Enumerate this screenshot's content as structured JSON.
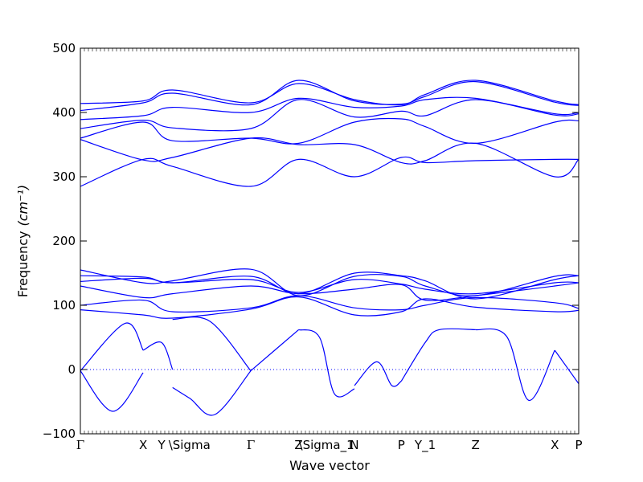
{
  "chart_data": {
    "type": "line",
    "title": "",
    "xlabel": "Wave vector",
    "ylabel": "Frequency",
    "ylabel_unit": "(cm⁻¹)",
    "ylim": [
      -100,
      500
    ],
    "yticks": [
      -100,
      0,
      100,
      200,
      300,
      400,
      500
    ],
    "xlim": [
      0,
      100
    ],
    "grid": false,
    "legend": "none",
    "line_color": "#0000ff",
    "zero_line": {
      "y": 0,
      "style": "dotted",
      "color": "#0000ff"
    },
    "high_symmetry_points": [
      {
        "label": "Γ",
        "x": 0
      },
      {
        "label": "X",
        "x": 12.6
      },
      {
        "label": "Y",
        "x": 16.3
      },
      {
        "label": "\\Sigma",
        "x": 18.5
      },
      {
        "label": "Γ",
        "x": 34.2
      },
      {
        "label": "Z",
        "x": 43.8
      },
      {
        "label": "\\Sigma_1",
        "x": 44.6
      },
      {
        "label": "N",
        "x": 55.0
      },
      {
        "label": "P",
        "x": 64.4
      },
      {
        "label": "Y_1",
        "x": 69.2
      },
      {
        "label": "Z",
        "x": 79.3
      },
      {
        "label": "X",
        "x": 95.2
      },
      {
        "label": "P",
        "x": 100
      }
    ],
    "series": [
      {
        "x": [
          0,
          9,
          12.6
        ],
        "y": [
          -2,
          72,
          30
        ]
      },
      {
        "x": [
          0,
          6.5,
          12.6
        ],
        "y": [
          -2,
          -65,
          -5
        ]
      },
      {
        "x": [
          12.6,
          16.3,
          18.5
        ],
        "y": [
          30,
          42,
          0
        ]
      },
      {
        "x": [
          18.5,
          22,
          27,
          34.2
        ],
        "y": [
          -28,
          -45,
          -70,
          -2
        ]
      },
      {
        "x": [
          18.5,
          26,
          34.2
        ],
        "y": [
          78,
          75,
          -2
        ]
      },
      {
        "x": [
          34.2,
          43.8
        ],
        "y": [
          -2,
          62
        ]
      },
      {
        "x": [
          43.8,
          48,
          51,
          55
        ],
        "y": [
          62,
          50,
          -38,
          -30
        ]
      },
      {
        "x": [
          55,
          59.5,
          62.5,
          64.4
        ],
        "y": [
          -25,
          12,
          -25,
          -18
        ]
      },
      {
        "x": [
          64.4,
          69.2,
          72,
          79.3
        ],
        "y": [
          -18,
          42,
          62,
          62
        ]
      },
      {
        "x": [
          79.3,
          85.5,
          90,
          95.2
        ],
        "y": [
          62,
          52,
          -48,
          30
        ]
      },
      {
        "x": [
          95.2,
          100
        ],
        "y": [
          30,
          -22
        ]
      },
      {
        "x": [
          0,
          12.6,
          18.5,
          34.2,
          43.8,
          55,
          64.4,
          69.2,
          79.3,
          95.2,
          100
        ],
        "y": [
          93,
          85,
          80,
          94,
          113,
          85,
          90,
          110,
          97,
          90,
          92
        ]
      },
      {
        "x": [
          0,
          12.6,
          18.5,
          34.2,
          43.8,
          55,
          64.4,
          69.2,
          79.3,
          95.2,
          100
        ],
        "y": [
          100,
          108,
          90,
          96,
          115,
          96,
          93,
          100,
          112,
          104,
          95
        ]
      },
      {
        "x": [
          0,
          12.6,
          18.5,
          34.2,
          43.8,
          55,
          64.4,
          69.2,
          79.3,
          95.2,
          100
        ],
        "y": [
          130,
          112,
          118,
          130,
          118,
          125,
          132,
          108,
          115,
          130,
          135
        ]
      },
      {
        "x": [
          0,
          12.6,
          18.5,
          34.2,
          43.8,
          55,
          64.4,
          69.2,
          79.3,
          95.2,
          100
        ],
        "y": [
          137,
          142,
          135,
          140,
          120,
          140,
          133,
          125,
          118,
          135,
          135
        ]
      },
      {
        "x": [
          0,
          12.6,
          18.5,
          34.2,
          43.8,
          55,
          64.4,
          69.2,
          79.3,
          95.2,
          100
        ],
        "y": [
          146,
          144,
          135,
          145,
          118,
          150,
          146,
          138,
          110,
          140,
          146
        ]
      },
      {
        "x": [
          0,
          12.6,
          18.5,
          34.2,
          43.8,
          55,
          64.4,
          69.2,
          79.3,
          95.2,
          100
        ],
        "y": [
          155,
          135,
          138,
          156,
          115,
          145,
          145,
          130,
          115,
          145,
          146
        ]
      },
      {
        "x": [
          0,
          12.6,
          18.5,
          34.2,
          43.8,
          55,
          64.4,
          69.2,
          79.3,
          95.2,
          100
        ],
        "y": [
          285,
          327,
          316,
          285,
          327,
          300,
          330,
          322,
          325,
          327,
          327
        ]
      },
      {
        "x": [
          0,
          12.6,
          18.5,
          34.2,
          43.8,
          55,
          64.4,
          69.2,
          79.3,
          95.2,
          100
        ],
        "y": [
          358,
          326,
          330,
          360,
          350,
          350,
          322,
          325,
          352,
          300,
          327
        ]
      },
      {
        "x": [
          0,
          12.6,
          18.5,
          34.2,
          43.8,
          55,
          64.4,
          69.2,
          79.3,
          95.2,
          100
        ],
        "y": [
          360,
          385,
          356,
          360,
          352,
          385,
          390,
          378,
          352,
          385,
          387
        ]
      },
      {
        "x": [
          0,
          12.6,
          18.5,
          34.2,
          43.8,
          55,
          64.4,
          69.2,
          79.3,
          95.2,
          100
        ],
        "y": [
          375,
          388,
          376,
          375,
          420,
          393,
          402,
          395,
          420,
          396,
          398
        ]
      },
      {
        "x": [
          0,
          12.6,
          18.5,
          34.2,
          43.8,
          55,
          64.4,
          69.2,
          79.3,
          95.2,
          100
        ],
        "y": [
          389,
          395,
          408,
          400,
          422,
          408,
          410,
          420,
          422,
          398,
          400
        ]
      },
      {
        "x": [
          0,
          12.6,
          18.5,
          34.2,
          43.8,
          55,
          64.4,
          69.2,
          79.3,
          95.2,
          100
        ],
        "y": [
          403,
          415,
          430,
          412,
          450,
          418,
          413,
          425,
          448,
          416,
          411
        ]
      },
      {
        "x": [
          0,
          12.6,
          18.5,
          34.2,
          43.8,
          55,
          64.4,
          69.2,
          79.3,
          95.2,
          100
        ],
        "y": [
          414,
          418,
          435,
          415,
          445,
          420,
          412,
          428,
          450,
          418,
          412
        ]
      }
    ]
  }
}
